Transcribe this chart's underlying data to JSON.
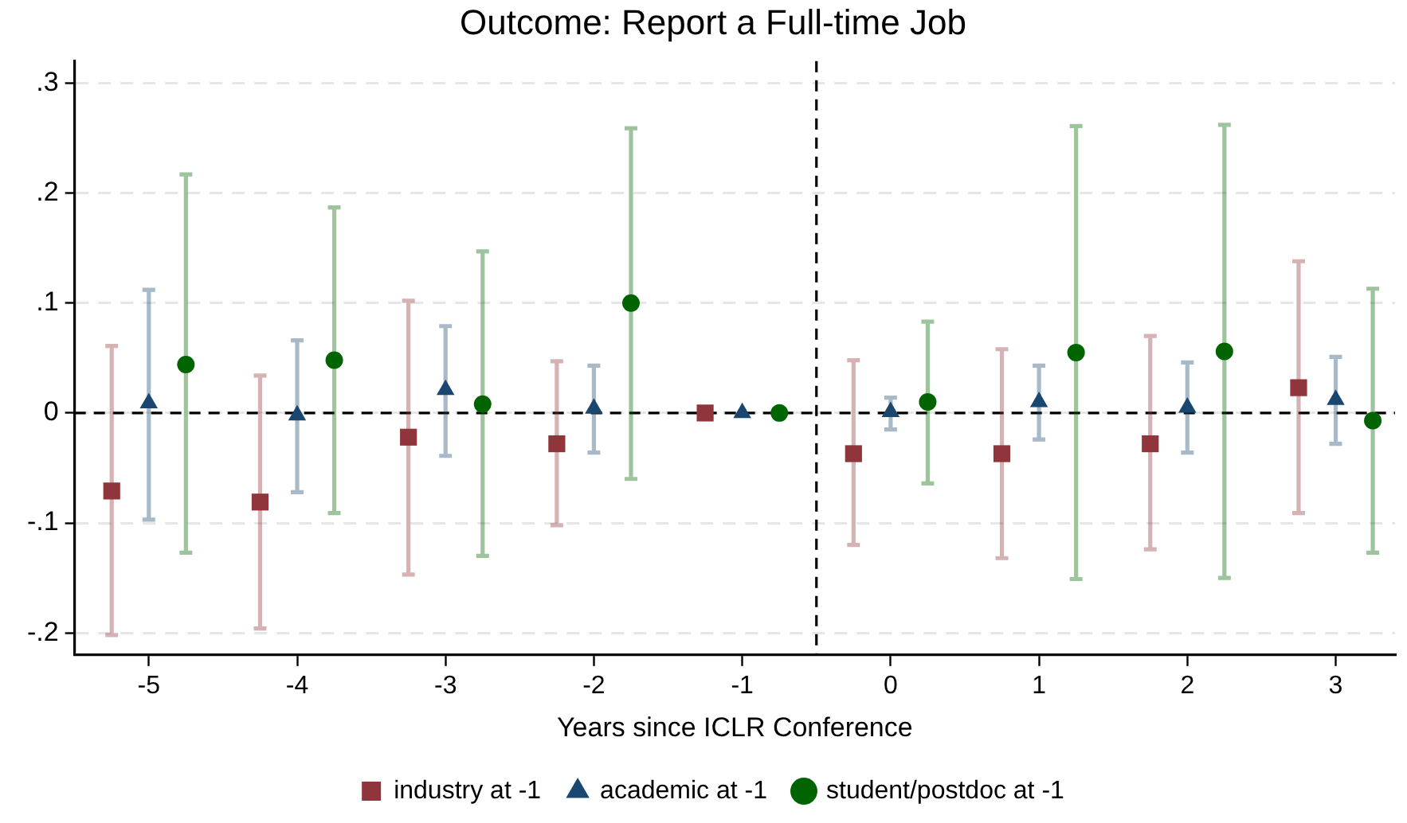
{
  "chart_data": {
    "type": "scatter",
    "title": "Outcome: Report a Full-time Job",
    "xlabel": "Years since ICLR Conference",
    "xlim": [
      -5.5,
      3.4
    ],
    "xticks": [
      -5,
      -4,
      -3,
      -2,
      -1,
      0,
      1,
      2,
      3
    ],
    "ylim": [
      -0.22,
      0.32
    ],
    "yticks": [
      {
        "value": -0.2,
        "label": "-.2"
      },
      {
        "value": -0.1,
        "label": "-.1"
      },
      0,
      {
        "value": 0.1,
        "label": ".1"
      },
      {
        "value": 0.2,
        "label": ".2"
      },
      {
        "value": 0.3,
        "label": ".3"
      }
    ],
    "grid": "y",
    "legend": "bottom",
    "ref_lines": [
      {
        "axis": "y",
        "value": 0,
        "line_style": "dashed",
        "color": "#000000"
      },
      {
        "axis": "x",
        "value": -0.5,
        "line_style": "dashed",
        "color": "#000000"
      }
    ],
    "series": [
      {
        "name": "industry at -1",
        "color": "#90353b",
        "marker": "square",
        "x": [
          -5.25,
          -4.25,
          -3.25,
          -2.25,
          -1.25,
          -0.25,
          0.75,
          1.75,
          2.75
        ],
        "values": [
          -0.071,
          -0.081,
          -0.022,
          -0.028,
          0,
          -0.037,
          -0.037,
          -0.028,
          0.023
        ],
        "errors": [
          [
            -0.202,
            0.061
          ],
          [
            -0.196,
            0.034
          ],
          [
            -0.147,
            0.102
          ],
          [
            -0.102,
            0.047
          ],
          null,
          [
            -0.12,
            0.048
          ],
          [
            -0.132,
            0.058
          ],
          [
            -0.124,
            0.07
          ],
          [
            -0.091,
            0.138
          ]
        ]
      },
      {
        "name": "academic at -1",
        "color": "#1a476f",
        "marker": "triangle",
        "x": [
          -5,
          -4,
          -3,
          -2,
          -1,
          0,
          1,
          2,
          3
        ],
        "values": [
          0.009,
          -0.002,
          0.021,
          0.004,
          0,
          0.001,
          0.01,
          0.005,
          0.012
        ],
        "errors": [
          [
            -0.097,
            0.112
          ],
          [
            -0.072,
            0.066
          ],
          [
            -0.039,
            0.079
          ],
          [
            -0.036,
            0.043
          ],
          null,
          [
            -0.015,
            0.014
          ],
          [
            -0.024,
            0.043
          ],
          [
            -0.036,
            0.046
          ],
          [
            -0.028,
            0.051
          ]
        ]
      },
      {
        "name": "student/postdoc at -1",
        "color": "#006400",
        "marker": "circle",
        "x": [
          -4.75,
          -3.75,
          -2.75,
          -1.75,
          -0.75,
          0.25,
          1.25,
          2.25,
          3.25
        ],
        "values": [
          0.044,
          0.048,
          0.008,
          0.1,
          0,
          0.01,
          0.055,
          0.056,
          -0.007
        ],
        "errors": [
          [
            -0.127,
            0.217
          ],
          [
            -0.091,
            0.187
          ],
          [
            -0.13,
            0.147
          ],
          [
            -0.06,
            0.259
          ],
          null,
          [
            -0.064,
            0.083
          ],
          [
            -0.151,
            0.261
          ],
          [
            -0.15,
            0.262
          ],
          [
            -0.127,
            0.113
          ]
        ]
      }
    ]
  }
}
